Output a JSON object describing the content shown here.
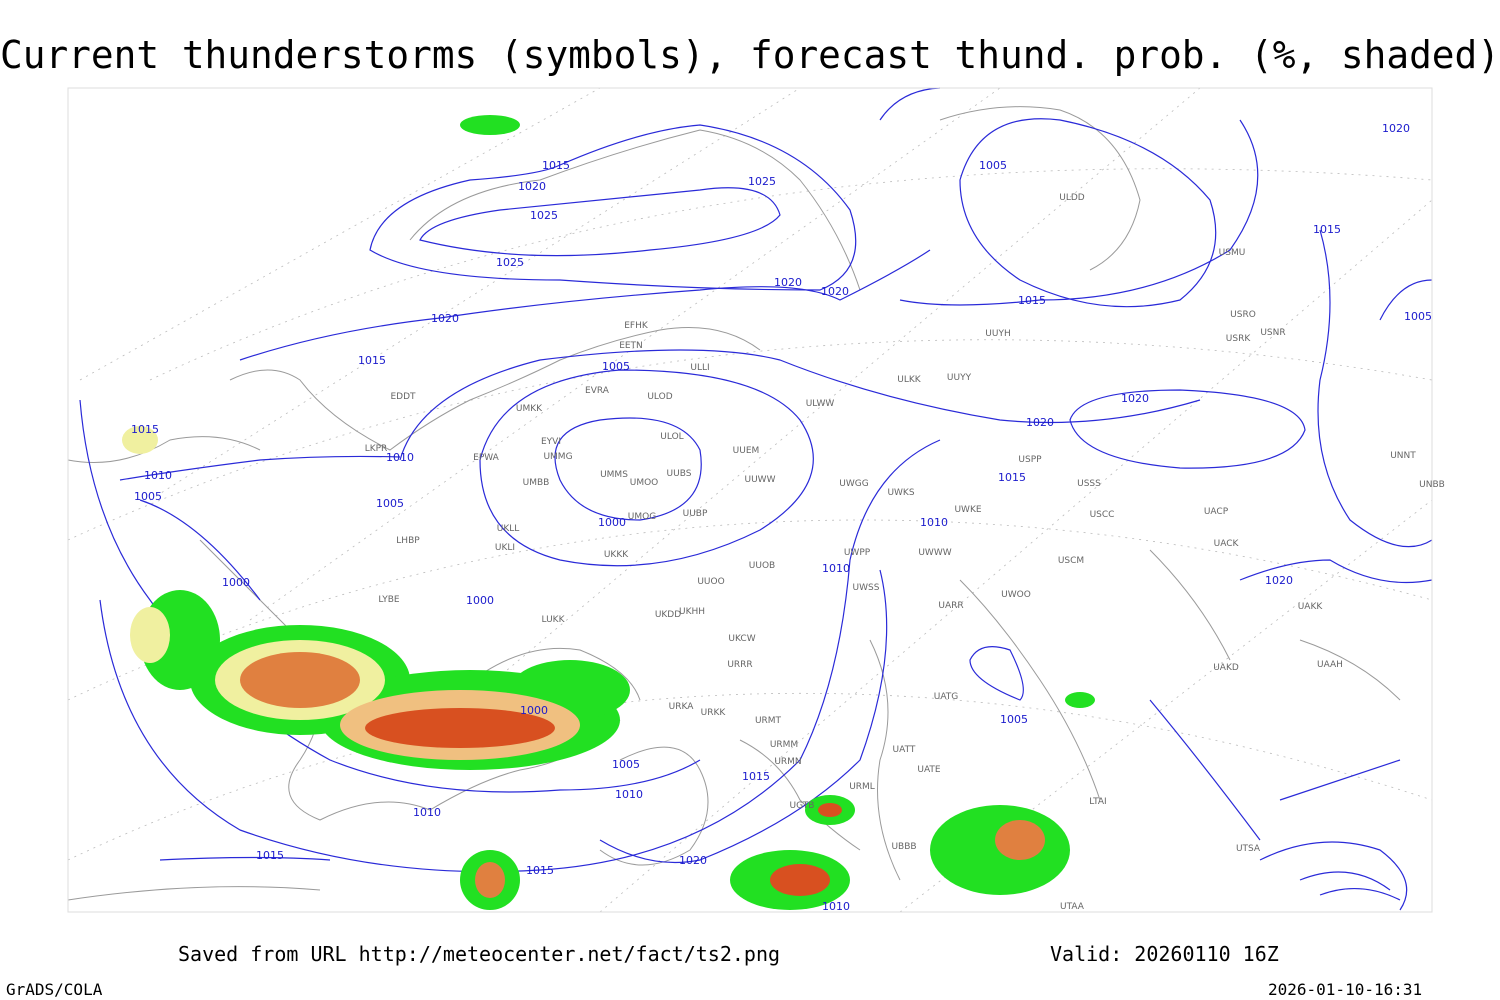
{
  "header": {
    "title": "Current thunderstorms (symbols), forecast thund. prob. (%, shaded)"
  },
  "footer": {
    "source": "Saved from URL http://meteocenter.net/fact/ts2.png",
    "valid": "Valid: 20260110 16Z",
    "software": "GrADS/COLA",
    "timestamp": "2026-01-10-16:31"
  },
  "isobar_labels": [
    "1015",
    "1020",
    "1025",
    "1025",
    "1025",
    "1020",
    "1020",
    "1020",
    "1015",
    "1005",
    "1005",
    "1015",
    "1020",
    "1020",
    "1015",
    "1010",
    "1010",
    "1010",
    "1010",
    "1005",
    "1005",
    "1000",
    "1000",
    "1000",
    "1000",
    "1005",
    "1010",
    "1010",
    "1015",
    "1015",
    "1015",
    "1020",
    "1010",
    "1005",
    "1020",
    "1015",
    "1005",
    "1020",
    "1015"
  ],
  "stations": [
    "EFHK",
    "EETN",
    "EVRA",
    "ULLI",
    "ULOD",
    "UMKK",
    "EYVI",
    "UMMG",
    "EPWA",
    "UMMS",
    "UMOO",
    "UUEM",
    "UUWW",
    "ULOL",
    "UUBS",
    "UMBB",
    "UMOG",
    "UUBP",
    "UKLL",
    "UKLI",
    "UKKK",
    "UUOO",
    "UUOB",
    "LUKK",
    "UKHH",
    "UKDD",
    "UKCW",
    "URRR",
    "URKA",
    "URKK",
    "URMT",
    "URMM",
    "URMN",
    "URML",
    "UGTB",
    "UBBB",
    "UTAA",
    "UTSA",
    "ULDD",
    "USMU",
    "USRO",
    "USRK",
    "USNR",
    "USSS",
    "USCC",
    "USCM",
    "UACP",
    "UACK",
    "UAKK",
    "UAAH",
    "UAKD",
    "UATG",
    "UATE",
    "UATT",
    "UWOO",
    "UWGG",
    "UWKS",
    "UWKE",
    "UWWW",
    "UWPP",
    "UWSS",
    "UARR",
    "ULKK",
    "UUYY",
    "UUYH",
    "ULWW",
    "UNBB",
    "UNNT",
    "LHBP",
    "LYBE",
    "EDDT",
    "LKPR",
    "LTAI",
    "USPP"
  ]
}
